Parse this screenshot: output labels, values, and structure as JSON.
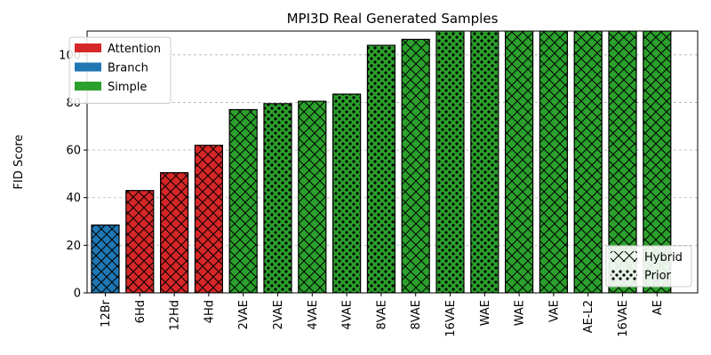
{
  "chart_data": {
    "type": "bar",
    "title": "MPI3D Real Generated Samples",
    "xlabel": "",
    "ylabel": "FID Score",
    "ylim": [
      0,
      110
    ],
    "yticks": [
      0,
      20,
      40,
      60,
      80,
      100
    ],
    "grid": "y-dashed",
    "categories": [
      "12Br",
      "6Hd",
      "12Hd",
      "4Hd",
      "2VAE",
      "2VAE",
      "4VAE",
      "4VAE",
      "8VAE",
      "8VAE",
      "16VAE",
      "WAE",
      "WAE",
      "VAE",
      "AE-L2",
      "16VAE",
      "AE"
    ],
    "values": [
      28.5,
      43,
      50.5,
      62,
      77,
      79.5,
      80.5,
      83.5,
      104,
      106.5,
      110,
      110,
      110,
      110,
      110,
      110,
      110
    ],
    "groups": [
      "Branch",
      "Attention",
      "Attention",
      "Attention",
      "Simple",
      "Simple",
      "Simple",
      "Simple",
      "Simple",
      "Simple",
      "Simple",
      "Simple",
      "Simple",
      "Simple",
      "Simple",
      "Simple",
      "Simple"
    ],
    "patterns": [
      "Hybrid",
      "Hybrid",
      "Hybrid",
      "Hybrid",
      "Hybrid",
      "Prior",
      "Hybrid",
      "Prior",
      "Prior",
      "Hybrid",
      "Prior",
      "Prior",
      "Hybrid",
      "Hybrid",
      "Hybrid",
      "Hybrid",
      "Hybrid"
    ],
    "legend_groups": [
      {
        "name": "Attention",
        "color": "#d62728"
      },
      {
        "name": "Branch",
        "color": "#1f77b4"
      },
      {
        "name": "Simple",
        "color": "#2ca02c"
      }
    ],
    "legend_groups_placement": "top-left",
    "legend_patterns": [
      {
        "name": "Hybrid",
        "hatch": "cross"
      },
      {
        "name": "Prior",
        "hatch": "dots"
      }
    ],
    "legend_patterns_placement": "bottom-right"
  }
}
